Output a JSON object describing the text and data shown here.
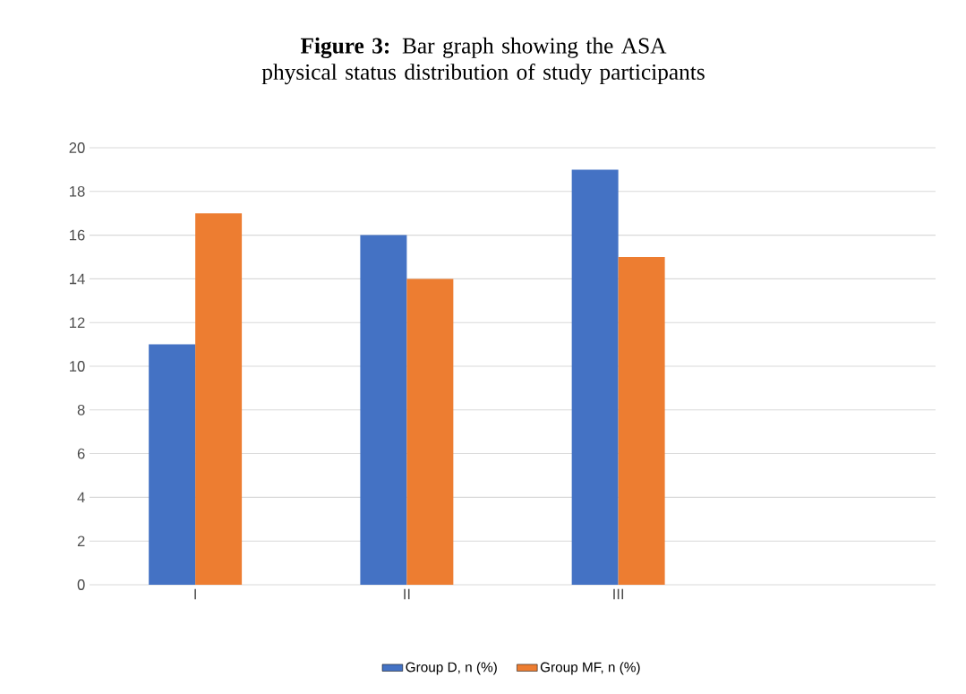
{
  "chart_data": {
    "type": "bar",
    "title": "**Figure 3:** Bar graph showing the ASA physical status distribution of study participants",
    "categories": [
      "I",
      "II",
      "III",
      null
    ],
    "series": [
      {
        "name": "Group D, n (%)",
        "color": "#4472c4",
        "values": [
          11,
          16,
          19,
          null
        ]
      },
      {
        "name": "Group MF, n (%)",
        "color": "#ed7d31",
        "values": [
          17,
          14,
          15,
          null
        ]
      }
    ],
    "ylim": [
      0,
      20
    ],
    "yticks": [
      0,
      2,
      4,
      6,
      8,
      10,
      12,
      14,
      16,
      18,
      20
    ],
    "grid": "y",
    "legend": "bottom"
  }
}
